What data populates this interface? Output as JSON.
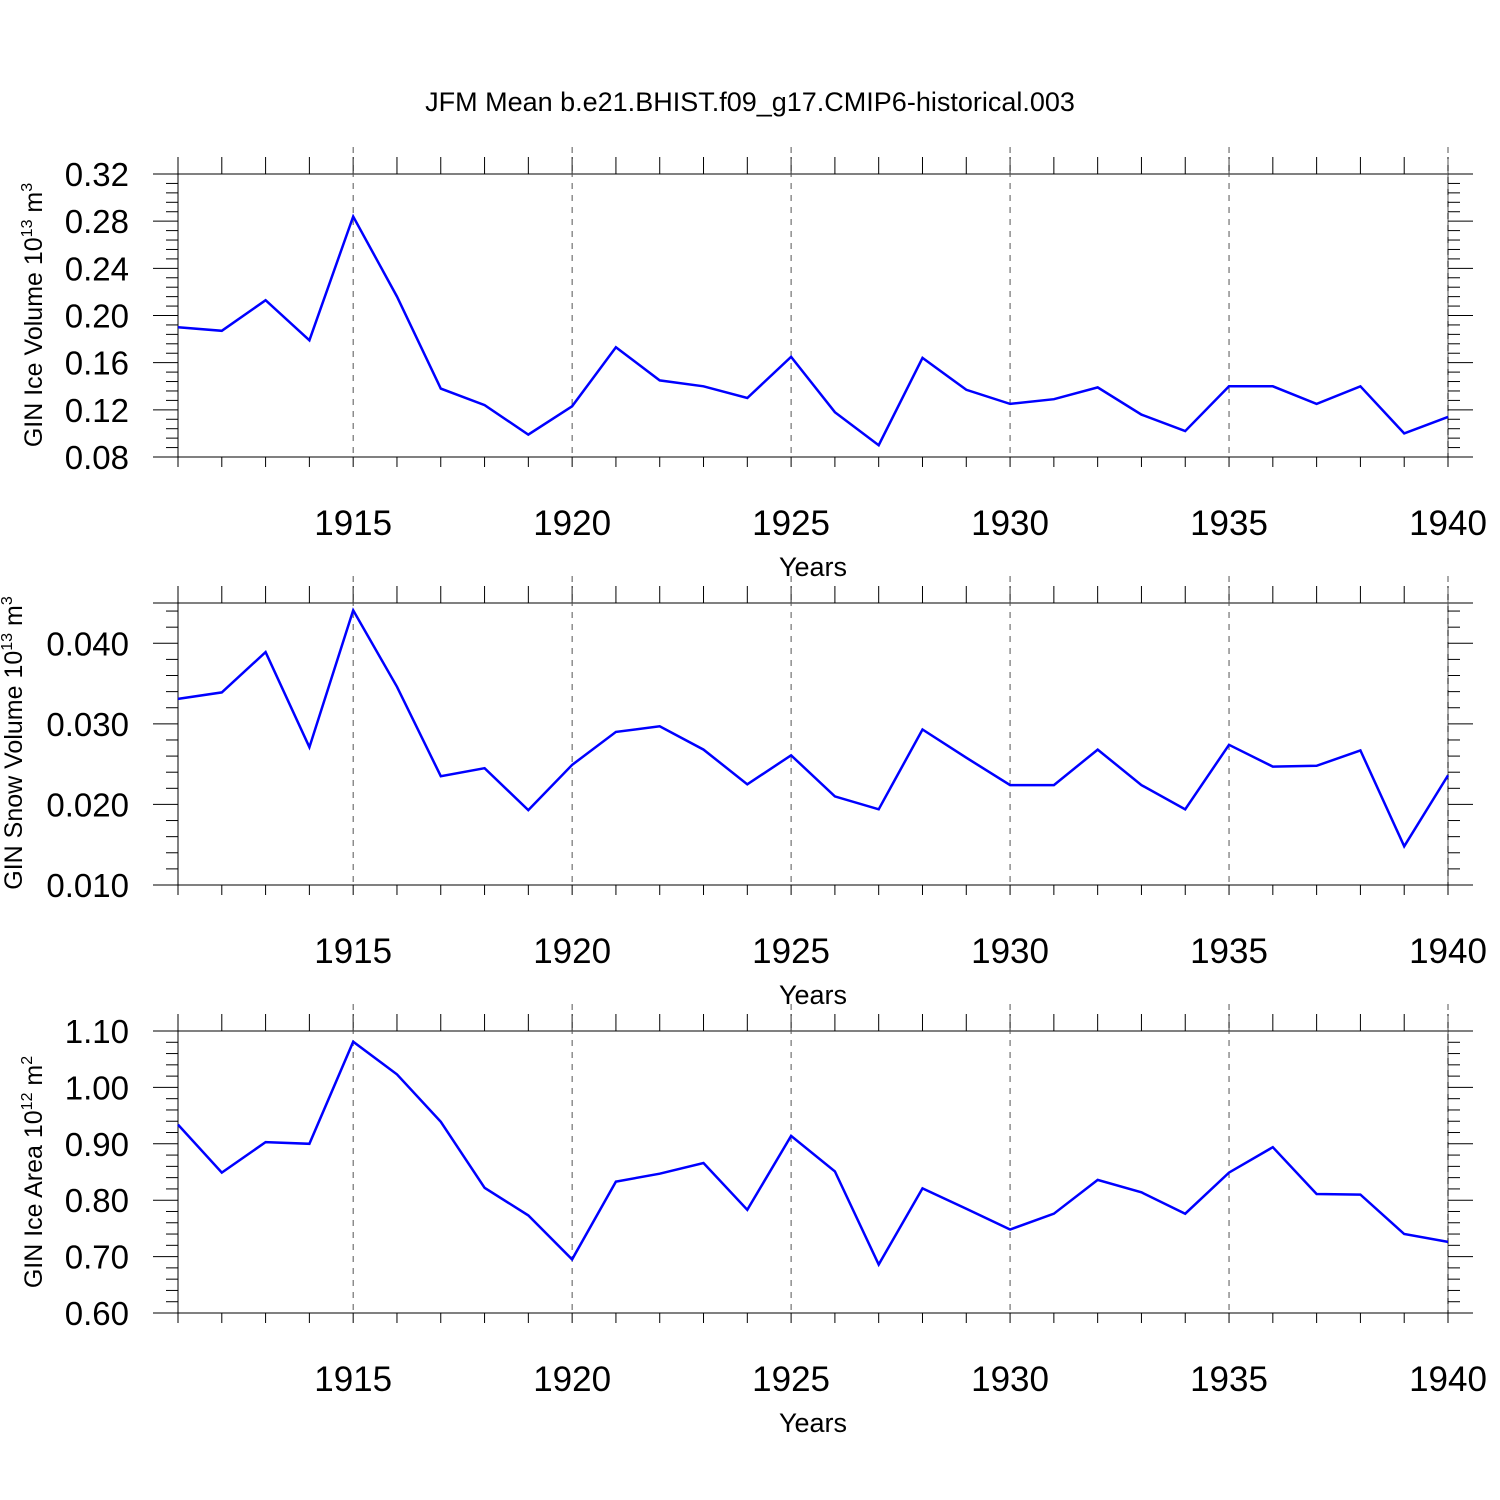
{
  "figure": {
    "title": "JFM Mean b.e21.BHIST.f09_g17.CMIP6-historical.003"
  },
  "chart_data": [
    {
      "type": "line",
      "title": "JFM Mean b.e21.BHIST.f09_g17.CMIP6-historical.003",
      "xlabel": "Years",
      "ylabel": {
        "main": "GIN Ice Volume 10",
        "exp": "13",
        "unit": " m",
        "unit_exp": "3"
      },
      "xlim": [
        1911,
        1940
      ],
      "ylim": [
        0.08,
        0.32
      ],
      "x_ticks": [
        1915,
        1920,
        1925,
        1930,
        1935,
        1940
      ],
      "y_ticks": [
        0.08,
        0.12,
        0.16,
        0.2,
        0.24,
        0.28,
        0.32
      ],
      "y_tick_labels": [
        "0.08",
        "0.12",
        "0.16",
        "0.20",
        "0.24",
        "0.28",
        "0.32"
      ],
      "grid": "vertical dashed at major x ticks",
      "color": "#0000ff",
      "x": [
        1911,
        1912,
        1913,
        1914,
        1915,
        1916,
        1917,
        1918,
        1919,
        1920,
        1921,
        1922,
        1923,
        1924,
        1925,
        1926,
        1927,
        1928,
        1929,
        1930,
        1931,
        1932,
        1933,
        1934,
        1935,
        1936,
        1937,
        1938,
        1939,
        1940
      ],
      "values": [
        0.19,
        0.187,
        0.213,
        0.179,
        0.284,
        0.216,
        0.138,
        0.124,
        0.099,
        0.123,
        0.173,
        0.145,
        0.14,
        0.13,
        0.165,
        0.118,
        0.09,
        0.164,
        0.137,
        0.125,
        0.129,
        0.139,
        0.116,
        0.102,
        0.14,
        0.14,
        0.125,
        0.14,
        0.1,
        0.114
      ]
    },
    {
      "type": "line",
      "xlabel": "Years",
      "ylabel": {
        "main": "GIN Snow Volume 10",
        "exp": "13",
        "unit": " m",
        "unit_exp": "3"
      },
      "xlim": [
        1911,
        1940
      ],
      "ylim": [
        0.01,
        0.045
      ],
      "x_ticks": [
        1915,
        1920,
        1925,
        1930,
        1935,
        1940
      ],
      "y_ticks": [
        0.01,
        0.02,
        0.03,
        0.04
      ],
      "y_tick_labels": [
        "0.010",
        "0.020",
        "0.030",
        "0.040"
      ],
      "grid": "vertical dashed at major x ticks",
      "color": "#0000ff",
      "x": [
        1911,
        1912,
        1913,
        1914,
        1915,
        1916,
        1917,
        1918,
        1919,
        1920,
        1921,
        1922,
        1923,
        1924,
        1925,
        1926,
        1927,
        1928,
        1929,
        1930,
        1931,
        1932,
        1933,
        1934,
        1935,
        1936,
        1937,
        1938,
        1939,
        1940
      ],
      "values": [
        0.0331,
        0.0339,
        0.0389,
        0.0271,
        0.0441,
        0.0346,
        0.0235,
        0.0245,
        0.0193,
        0.0249,
        0.029,
        0.0297,
        0.0268,
        0.0225,
        0.0261,
        0.021,
        0.0194,
        0.0293,
        0.0258,
        0.0224,
        0.0224,
        0.0268,
        0.0224,
        0.0194,
        0.0274,
        0.0247,
        0.0248,
        0.0267,
        0.0148,
        0.0236
      ]
    },
    {
      "type": "line",
      "xlabel": "Years",
      "ylabel": {
        "main": "GIN Ice Area 10",
        "exp": "12",
        "unit": " m",
        "unit_exp": "2"
      },
      "xlim": [
        1911,
        1940
      ],
      "ylim": [
        0.6,
        1.1
      ],
      "x_ticks": [
        1915,
        1920,
        1925,
        1930,
        1935,
        1940
      ],
      "y_ticks": [
        0.6,
        0.7,
        0.8,
        0.9,
        1.0,
        1.1
      ],
      "y_tick_labels": [
        "0.60",
        "0.70",
        "0.80",
        "0.90",
        "1.00",
        "1.10"
      ],
      "grid": "vertical dashed at major x ticks",
      "color": "#0000ff",
      "x": [
        1911,
        1912,
        1913,
        1914,
        1915,
        1916,
        1917,
        1918,
        1919,
        1920,
        1921,
        1922,
        1923,
        1924,
        1925,
        1926,
        1927,
        1928,
        1929,
        1930,
        1931,
        1932,
        1933,
        1934,
        1935,
        1936,
        1937,
        1938,
        1939,
        1940
      ],
      "values": [
        0.934,
        0.849,
        0.903,
        0.9,
        1.081,
        1.023,
        0.939,
        0.822,
        0.773,
        0.695,
        0.833,
        0.847,
        0.866,
        0.783,
        0.914,
        0.851,
        0.686,
        0.821,
        0.785,
        0.748,
        0.776,
        0.836,
        0.814,
        0.776,
        0.849,
        0.894,
        0.811,
        0.81,
        0.74,
        0.726
      ]
    }
  ]
}
